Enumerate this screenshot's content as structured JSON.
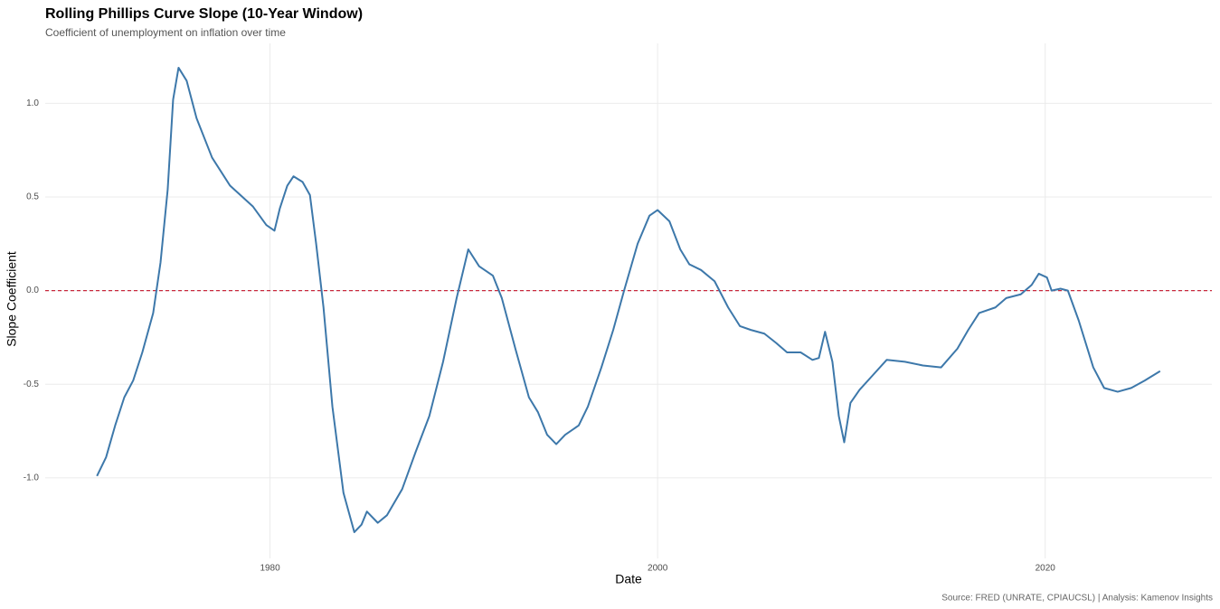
{
  "chart_data": {
    "type": "line",
    "title": "Rolling Phillips Curve Slope (10-Year Window)",
    "subtitle": "Coefficient of unemployment on inflation over time",
    "x_label": "Date",
    "y_label": "Slope Coefficient",
    "caption": "Source: FRED (UNRATE, CPIAUCSL) | Analysis: Kamenov Insights",
    "x": [
      1971.07,
      1971.54,
      1972.01,
      1972.48,
      1972.94,
      1973.41,
      1973.97,
      1974.35,
      1974.72,
      1975.0,
      1975.28,
      1975.7,
      1976.21,
      1977.01,
      1977.94,
      1979.11,
      1979.81,
      1980.23,
      1980.51,
      1980.89,
      1981.21,
      1981.68,
      1982.06,
      1982.38,
      1982.76,
      1983.22,
      1983.79,
      1984.35,
      1984.72,
      1985.0,
      1985.56,
      1986.03,
      1986.82,
      1987.52,
      1988.22,
      1988.93,
      1989.63,
      1990.23,
      1990.79,
      1991.5,
      1991.96,
      1992.66,
      1993.36,
      1993.83,
      1994.3,
      1994.77,
      1995.23,
      1995.93,
      1996.4,
      1997.1,
      1997.71,
      1998.27,
      1998.97,
      1999.58,
      2000.0,
      2000.61,
      2001.17,
      2001.64,
      2002.24,
      2002.94,
      2003.64,
      2004.25,
      2004.81,
      2005.51,
      2006.12,
      2006.68,
      2007.38,
      2007.99,
      2008.32,
      2008.64,
      2009.02,
      2009.35,
      2009.63,
      2009.95,
      2010.42,
      2011.12,
      2011.82,
      2012.76,
      2013.69,
      2014.63,
      2015.47,
      2016.03,
      2016.59,
      2017.43,
      2017.99,
      2018.74,
      2019.3,
      2019.67,
      2020.09,
      2020.33,
      2020.79,
      2021.17,
      2021.73,
      2022.48,
      2023.04,
      2023.74,
      2024.44,
      2025.14,
      2025.93
    ],
    "series": [
      {
        "name": "Slope",
        "color": "#3d78aa",
        "values": [
          -0.99,
          -0.89,
          -0.72,
          -0.57,
          -0.48,
          -0.33,
          -0.12,
          0.15,
          0.54,
          1.02,
          1.19,
          1.12,
          0.92,
          0.71,
          0.56,
          0.45,
          0.35,
          0.32,
          0.44,
          0.56,
          0.61,
          0.58,
          0.51,
          0.25,
          -0.09,
          -0.62,
          -1.08,
          -1.29,
          -1.25,
          -1.18,
          -1.24,
          -1.2,
          -1.06,
          -0.86,
          -0.67,
          -0.38,
          -0.04,
          0.22,
          0.13,
          0.08,
          -0.04,
          -0.31,
          -0.57,
          -0.65,
          -0.77,
          -0.82,
          -0.77,
          -0.72,
          -0.62,
          -0.41,
          -0.21,
          0.0,
          0.25,
          0.4,
          0.43,
          0.37,
          0.22,
          0.14,
          0.11,
          0.05,
          -0.09,
          -0.19,
          -0.21,
          -0.23,
          -0.28,
          -0.33,
          -0.33,
          -0.37,
          -0.36,
          -0.22,
          -0.38,
          -0.67,
          -0.81,
          -0.6,
          -0.53,
          -0.45,
          -0.37,
          -0.38,
          -0.4,
          -0.41,
          -0.31,
          -0.21,
          -0.12,
          -0.09,
          -0.04,
          -0.02,
          0.03,
          0.09,
          0.07,
          0.0,
          0.01,
          0.0,
          -0.16,
          -0.41,
          -0.52,
          -0.54,
          -0.52,
          -0.48,
          -0.43
        ]
      }
    ],
    "reference_line": {
      "value": 0,
      "color": "#c8283c"
    },
    "xlim": [
      1968.4,
      2028.6
    ],
    "ylim": [
      -1.43,
      1.32
    ],
    "xticks": [
      1980,
      2000,
      2020
    ],
    "yticks": [
      {
        "value": -1,
        "label": "-1.0"
      },
      -0.5,
      {
        "value": 0,
        "label": "0.0"
      },
      0.5,
      {
        "value": 1,
        "label": "1.0"
      }
    ],
    "grid": true
  }
}
